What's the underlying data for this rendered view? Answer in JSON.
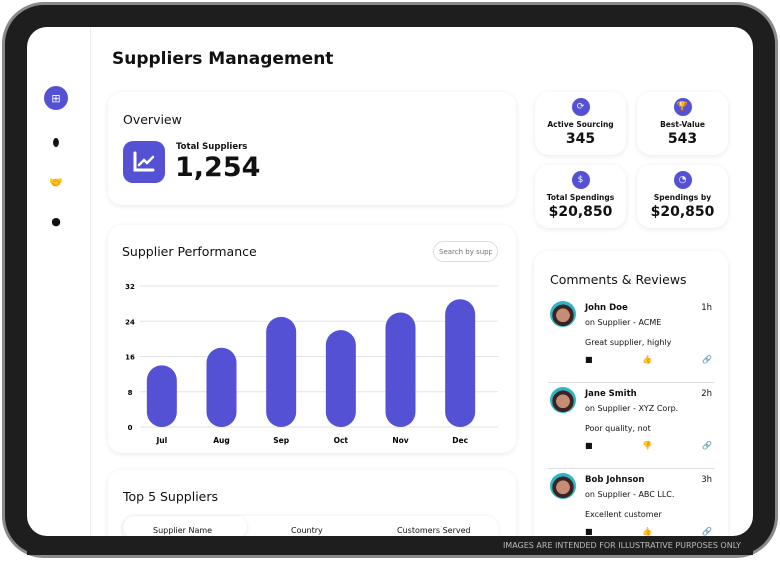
{
  "header": {
    "title": "Suppliers Management"
  },
  "sidebar": {
    "items": [
      {
        "icon": "grid-icon",
        "active": true
      },
      {
        "icon": "brain-icon"
      },
      {
        "icon": "handshake-icon"
      },
      {
        "icon": "clock-icon"
      }
    ]
  },
  "overview": {
    "title": "Overview",
    "label": "Total Suppliers",
    "value": "1,254",
    "icon": "chart-line-icon"
  },
  "stats": [
    {
      "label": "Active Sourcing",
      "value": "345",
      "icon": "sync-icon"
    },
    {
      "label": "Best-Value",
      "value": "543",
      "icon": "trophy-icon"
    },
    {
      "label": "Total Spendings",
      "value": "$20,850",
      "icon": "dollar-icon"
    },
    {
      "label": "Spendings by",
      "value": "$20,850",
      "icon": "pie-icon"
    }
  ],
  "performance": {
    "title": "Supplier Performance",
    "search_placeholder": "Search by supp"
  },
  "chart_data": {
    "type": "bar",
    "categories": [
      "Jul",
      "Aug",
      "Sep",
      "Oct",
      "Nov",
      "Dec"
    ],
    "values": [
      14,
      18,
      25,
      22,
      26,
      29
    ],
    "ylim": [
      0,
      32
    ],
    "yticks": [
      "0",
      "8",
      "16",
      "24",
      "32"
    ],
    "grid": true,
    "color": "#5451d4"
  },
  "top5": {
    "title": "Top 5 Suppliers",
    "columns": [
      "Supplier Name",
      "Country",
      "Customers Served"
    ]
  },
  "comments": {
    "title": "Comments & Reviews",
    "items": [
      {
        "name": "John Doe",
        "time": "1h",
        "supplier": "on Supplier - ACME",
        "text": "Great supplier, highly",
        "reaction": "thumbs-up-icon"
      },
      {
        "name": "Jane Smith",
        "time": "2h",
        "supplier": "on Supplier - XYZ Corp.",
        "text": "Poor quality, not",
        "reaction": "thumbs-down-icon"
      },
      {
        "name": "Bob Johnson",
        "time": "3h",
        "supplier": "on Supplier - ABC LLC.",
        "text": "Excellent customer",
        "reaction": "thumbs-up-icon"
      }
    ]
  },
  "footer": {
    "disclaimer": "IMAGES ARE INTENDED FOR ILLUSTRATIVE PURPOSES ONLY"
  },
  "colors": {
    "accent": "#5451d4"
  }
}
